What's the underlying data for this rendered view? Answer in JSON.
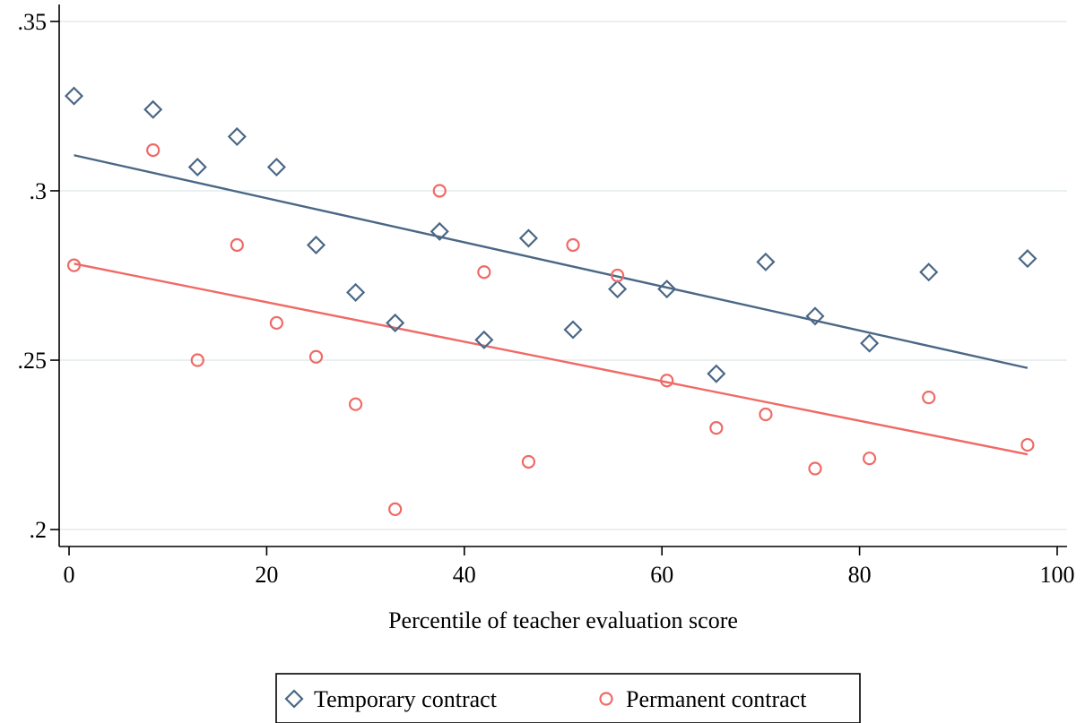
{
  "chart_data": {
    "type": "scatter",
    "title": "",
    "xlabel": "Percentile of teacher evaluation score",
    "ylabel": "",
    "xlim": [
      -1,
      101
    ],
    "ylim": [
      0.195,
      0.355
    ],
    "x_ticks": [
      {
        "value": 0,
        "label": "0"
      },
      {
        "value": 20,
        "label": "20"
      },
      {
        "value": 40,
        "label": "40"
      },
      {
        "value": 60,
        "label": "60"
      },
      {
        "value": 80,
        "label": "80"
      },
      {
        "value": 100,
        "label": "100"
      }
    ],
    "y_ticks": [
      {
        "value": 0.2,
        "label": ".2"
      },
      {
        "value": 0.25,
        "label": ".25"
      },
      {
        "value": 0.3,
        "label": ".3"
      },
      {
        "value": 0.35,
        "label": ".35"
      }
    ],
    "grid": {
      "horizontal": true,
      "vertical": false
    },
    "legend": {
      "position": "bottom"
    },
    "series": [
      {
        "name": "Temporary contract",
        "marker": "diamond",
        "color": "#4a6785",
        "points": [
          [
            0.5,
            0.328
          ],
          [
            8.5,
            0.324
          ],
          [
            13,
            0.307
          ],
          [
            17,
            0.316
          ],
          [
            21,
            0.307
          ],
          [
            25,
            0.284
          ],
          [
            29,
            0.27
          ],
          [
            33,
            0.261
          ],
          [
            37.5,
            0.288
          ],
          [
            42,
            0.256
          ],
          [
            46.5,
            0.286
          ],
          [
            51,
            0.259
          ],
          [
            55.5,
            0.271
          ],
          [
            60.5,
            0.271
          ],
          [
            65.5,
            0.246
          ],
          [
            70.5,
            0.279
          ],
          [
            75.5,
            0.263
          ],
          [
            81,
            0.255
          ],
          [
            87,
            0.276
          ],
          [
            97,
            0.28
          ]
        ],
        "fit": {
          "x": [
            0.5,
            97
          ],
          "y": [
            0.3105,
            0.2477
          ]
        }
      },
      {
        "name": "Permanent contract",
        "marker": "circle",
        "color": "#ef6a66",
        "points": [
          [
            0.5,
            0.278
          ],
          [
            8.5,
            0.312
          ],
          [
            13,
            0.25
          ],
          [
            17,
            0.284
          ],
          [
            21,
            0.261
          ],
          [
            25,
            0.251
          ],
          [
            29,
            0.237
          ],
          [
            33,
            0.206
          ],
          [
            37.5,
            0.3
          ],
          [
            42,
            0.276
          ],
          [
            46.5,
            0.22
          ],
          [
            51,
            0.284
          ],
          [
            55.5,
            0.275
          ],
          [
            60.5,
            0.244
          ],
          [
            65.5,
            0.23
          ],
          [
            70.5,
            0.234
          ],
          [
            75.5,
            0.218
          ],
          [
            81,
            0.221
          ],
          [
            87,
            0.239
          ],
          [
            97,
            0.225
          ]
        ],
        "fit": {
          "x": [
            0.5,
            97
          ],
          "y": [
            0.2785,
            0.2222
          ]
        }
      }
    ]
  }
}
